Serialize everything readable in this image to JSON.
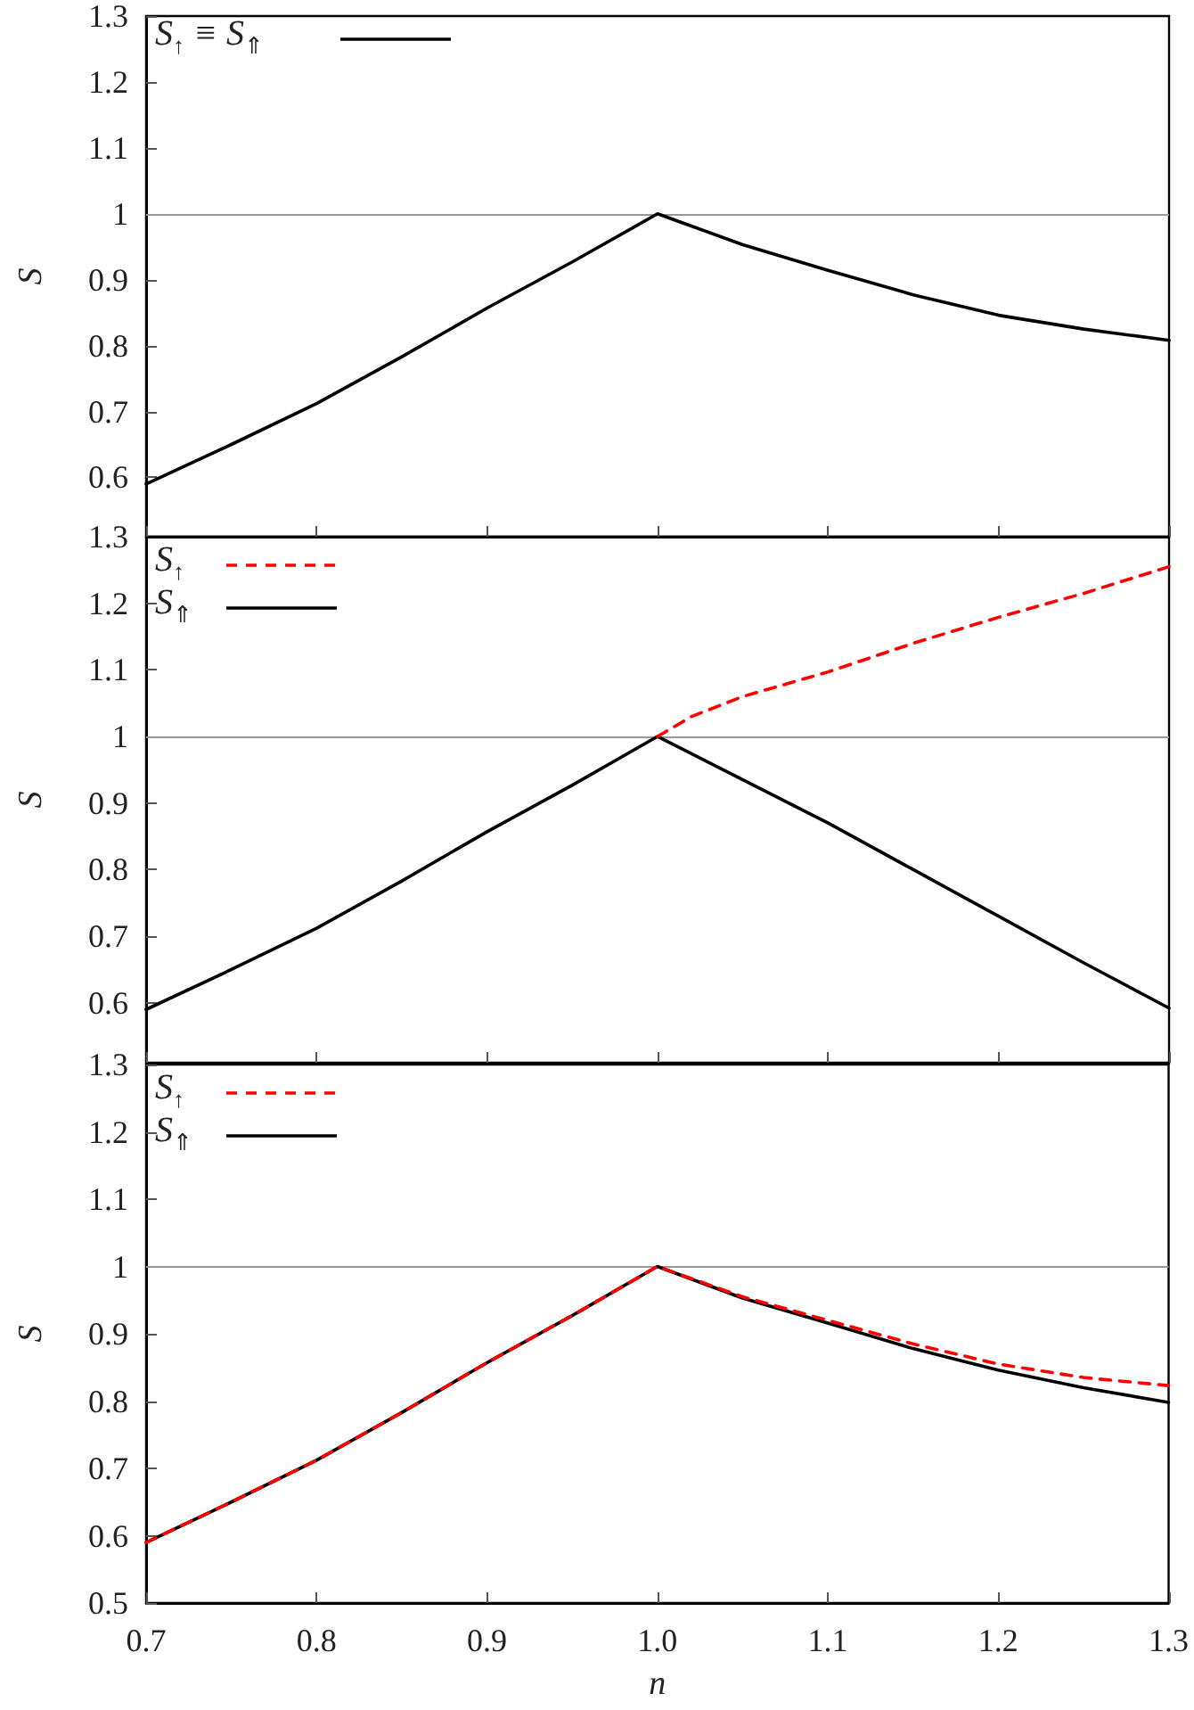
{
  "chart_data": [
    {
      "type": "line",
      "ylabel": "S",
      "xlim": [
        0.7,
        1.3
      ],
      "ylim": [
        0.51,
        1.3
      ],
      "xticks": [
        0.7,
        0.8,
        0.9,
        1,
        1.1,
        1.2,
        1.3
      ],
      "yticks": [
        0.6,
        0.7,
        0.8,
        0.9,
        1,
        1.1,
        1.2,
        1.3
      ],
      "tick_labels": "y",
      "legend": "top left",
      "marker": "none",
      "ref_lines": [
        {
          "axis": "y",
          "value": 1,
          "color": "#999999"
        }
      ],
      "series": [
        {
          "name": "S$_{↑}$ ≡ S$_{⇑}$",
          "color": "#000000",
          "line_style": "solid",
          "x": [
            0.7,
            0.75,
            0.8,
            0.85,
            0.9,
            0.95,
            1.0,
            1.05,
            1.1,
            1.15,
            1.2,
            1.25,
            1.3
          ],
          "values": [
            0.59,
            0.65,
            0.712,
            0.783,
            0.857,
            0.927,
            1.0,
            0.953,
            0.914,
            0.877,
            0.846,
            0.825,
            0.808
          ]
        }
      ]
    },
    {
      "type": "line",
      "ylabel": "S",
      "xlim": [
        0.7,
        1.3
      ],
      "ylim": [
        0.51,
        1.3
      ],
      "xticks": [
        0.7,
        0.8,
        0.9,
        1,
        1.1,
        1.2,
        1.3
      ],
      "yticks": [
        0.6,
        0.7,
        0.8,
        0.9,
        1,
        1.1,
        1.2,
        1.3
      ],
      "tick_labels": "y",
      "legend": "top left",
      "marker": "none",
      "ref_lines": [
        {
          "axis": "y",
          "value": 1,
          "color": "#999999"
        }
      ],
      "series": [
        {
          "name": "S$_{↑}$",
          "color": "#ff0000",
          "line_style": "dashed",
          "x": [
            1.0,
            1.02,
            1.05,
            1.1,
            1.15,
            1.2,
            1.25,
            1.3
          ],
          "values": [
            1.0,
            1.03,
            1.06,
            1.097,
            1.14,
            1.179,
            1.215,
            1.255
          ]
        },
        {
          "name": "S$_{⇑}$",
          "color": "#000000",
          "line_style": "solid",
          "x": [
            0.7,
            0.75,
            0.8,
            0.85,
            0.9,
            0.95,
            1.0,
            1.05,
            1.1,
            1.15,
            1.2,
            1.25,
            1.3
          ],
          "values": [
            0.59,
            0.65,
            0.712,
            0.783,
            0.857,
            0.927,
            1.0,
            0.935,
            0.87,
            0.8,
            0.73,
            0.66,
            0.592
          ]
        }
      ]
    },
    {
      "type": "line",
      "xlabel": "n",
      "ylabel": "S",
      "xlim": [
        0.7,
        1.3
      ],
      "ylim": [
        0.5,
        1.3
      ],
      "xticks": [
        0.7,
        0.8,
        0.9,
        {
          "value": 1,
          "label": "1.0"
        },
        1.1,
        1.2,
        1.3
      ],
      "yticks": [
        0.5,
        0.6,
        0.7,
        0.8,
        0.9,
        1,
        1.1,
        1.2,
        1.3
      ],
      "legend": "top left",
      "marker": "none",
      "ref_lines": [
        {
          "axis": "y",
          "value": 1,
          "color": "#999999"
        }
      ],
      "series": [
        {
          "name": "S$_{↑}$",
          "color": "#ff0000",
          "line_style": "dashed",
          "x": [
            0.7,
            0.75,
            0.8,
            0.85,
            0.9,
            0.95,
            1.0,
            1.05,
            1.1,
            1.15,
            1.2,
            1.25,
            1.3
          ],
          "values": [
            0.59,
            0.65,
            0.712,
            0.783,
            0.857,
            0.927,
            1.0,
            0.955,
            0.92,
            0.885,
            0.855,
            0.835,
            0.823
          ]
        },
        {
          "name": "S$_{⇑}$",
          "color": "#000000",
          "line_style": "solid",
          "x": [
            0.7,
            0.75,
            0.8,
            0.85,
            0.9,
            0.95,
            1.0,
            1.05,
            1.1,
            1.15,
            1.2,
            1.25,
            1.3
          ],
          "values": [
            0.59,
            0.65,
            0.712,
            0.783,
            0.857,
            0.927,
            1.0,
            0.953,
            0.916,
            0.878,
            0.846,
            0.82,
            0.798
          ]
        }
      ]
    }
  ]
}
